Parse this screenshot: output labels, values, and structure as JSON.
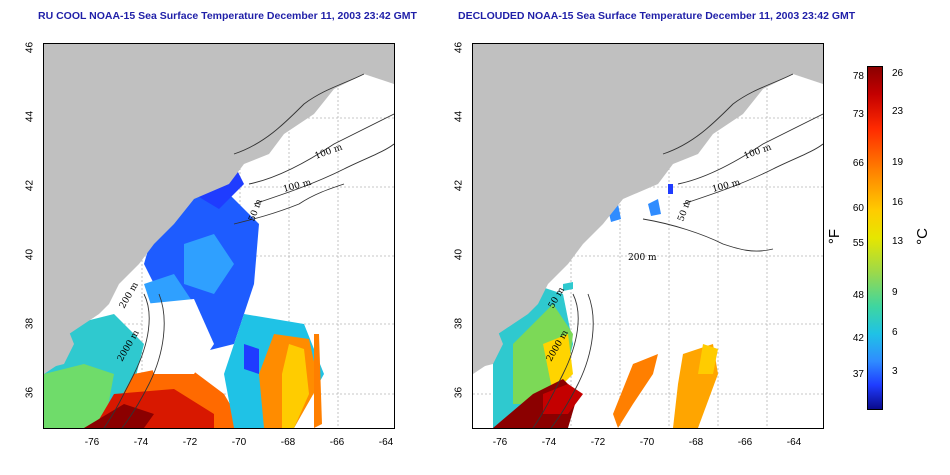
{
  "titles": {
    "left": "RU COOL NOAA-15 Sea Surface Temperature December 11, 2003 23:42 GMT",
    "right": "DECLOUDED NOAA-15 Sea Surface Temperature December 11, 2003 23:42 GMT"
  },
  "axes": {
    "x_ticks": [
      "-76",
      "-74",
      "-72",
      "-70",
      "-68",
      "-66",
      "-64"
    ],
    "y_ticks": [
      "36",
      "38",
      "40",
      "42",
      "44",
      "46"
    ]
  },
  "contours": {
    "left": [
      "100 m",
      "100 m",
      "50 m",
      "200 m",
      "2000 m"
    ],
    "right": [
      "100 m",
      "100 m",
      "50 m",
      "200 m",
      "50 m",
      "2000 m"
    ]
  },
  "colorbar": {
    "fahrenheit": [
      "78",
      "73",
      "66",
      "60",
      "55",
      "48",
      "42",
      "37"
    ],
    "celsius": [
      "26",
      "23",
      "19",
      "16",
      "13",
      "9",
      "6",
      "3"
    ],
    "unit_f": "°F",
    "unit_c": "°C"
  },
  "colors": {
    "land": "#c0c0c0",
    "title": "#1f1fa8"
  }
}
